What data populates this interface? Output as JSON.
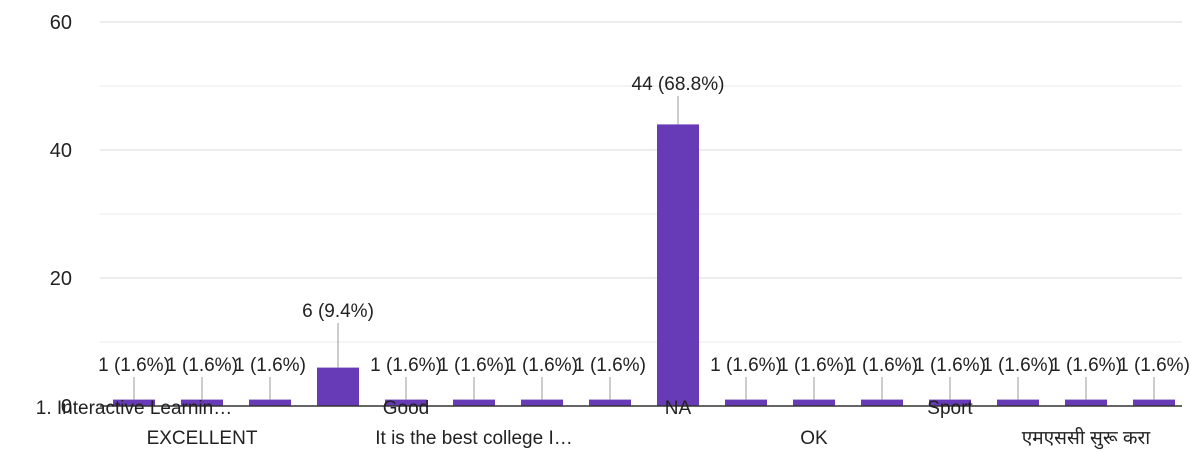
{
  "chart_data": {
    "type": "bar",
    "categories": [
      "1. Interactive Learnin…",
      "EXCELLENT",
      "",
      "",
      "Good",
      "It is the best college I…",
      "",
      "",
      "NA",
      "",
      "OK",
      "",
      "Sport",
      "",
      "एमएससी सुरू करा",
      ""
    ],
    "values": [
      1,
      1,
      1,
      6,
      1,
      1,
      1,
      1,
      44,
      1,
      1,
      1,
      1,
      1,
      1,
      1
    ],
    "data_labels": [
      "1 (1.6%)",
      "1 (1.6%)",
      "1 (1.6%)",
      "6 (9.4%)",
      "1 (1.6%)",
      "1 (1.6%)",
      "1 (1.6%)",
      "1 (1.6%)",
      "44 (68.8%)",
      "1 (1.6%)",
      "1 (1.6%)",
      "1 (1.6%)",
      "1 (1.6%)",
      "1 (1.6%)",
      "1 (1.6%)",
      "1 (1.6%)"
    ],
    "y_ticks": [
      "0",
      "20",
      "40",
      "60"
    ],
    "ylim": [
      0,
      60
    ],
    "grid": true,
    "colors": {
      "bar": "#673ab7",
      "grid": "#e0e0e0",
      "axis": "#333333",
      "text": "#222222",
      "leader": "#999999"
    }
  }
}
